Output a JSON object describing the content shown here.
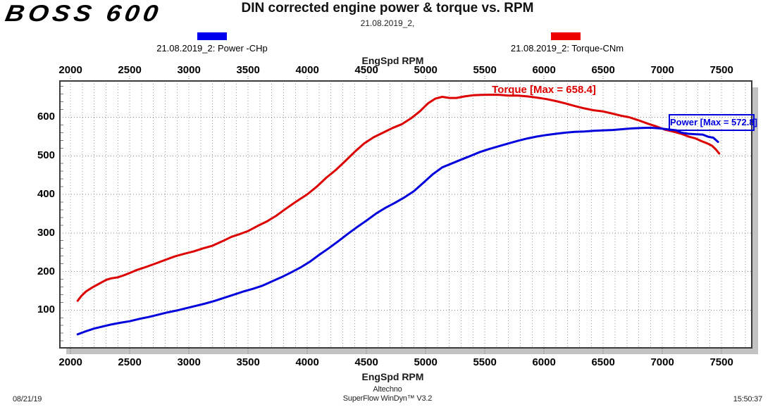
{
  "header": {
    "logo": "BOSS 600",
    "title": "DIN corrected engine power & torque vs. RPM",
    "subtitle": "21.08.2019_2,"
  },
  "legend": {
    "power": {
      "label": "21.08.2019_2: Power -CHp",
      "color": "#0000ee"
    },
    "torque": {
      "label": "21.08.2019_2: Torque-CNm",
      "color": "#ee0000"
    }
  },
  "axes": {
    "x_label_top": "EngSpd RPM",
    "x_label_bottom": "EngSpd RPM"
  },
  "annotations": {
    "torque_max": {
      "text": "Torque [Max = 658.4]",
      "color": "#dd0000"
    },
    "power_max": {
      "text": "Power [Max = 572.8]",
      "color": "#0000dd"
    }
  },
  "footer": {
    "date": "08/21/19",
    "center_line1": "Altechno",
    "center_line2": "SuperFlow WinDyn™ V3.2",
    "time": "15:50:37"
  },
  "chart_data": {
    "type": "line",
    "title": "DIN corrected engine power & torque vs. RPM",
    "subtitle": "21.08.2019_2,",
    "xlabel": "EngSpd RPM",
    "ylabel": "",
    "x_range": [
      1910,
      7755
    ],
    "y_range": [
      2,
      694
    ],
    "x_major_ticks": [
      2000,
      2500,
      3000,
      3500,
      4000,
      4500,
      5000,
      5500,
      6000,
      6500,
      7000,
      7500
    ],
    "y_major_ticks": [
      100,
      200,
      300,
      400,
      500,
      600
    ],
    "x_grid_step": 100,
    "y_minor_step": 20,
    "grid": "dotted",
    "legend_position": "top",
    "series": [
      {
        "name": "21.08.2019_2: Torque-CNm",
        "unit": "CNm",
        "color": "#dd0000",
        "max": 658.4,
        "points": [
          [
            2060,
            124
          ],
          [
            2090,
            136
          ],
          [
            2130,
            148
          ],
          [
            2180,
            158
          ],
          [
            2240,
            168
          ],
          [
            2300,
            178
          ],
          [
            2340,
            182
          ],
          [
            2400,
            185
          ],
          [
            2450,
            190
          ],
          [
            2500,
            196
          ],
          [
            2560,
            204
          ],
          [
            2640,
            212
          ],
          [
            2720,
            221
          ],
          [
            2800,
            230
          ],
          [
            2880,
            239
          ],
          [
            2960,
            246
          ],
          [
            3040,
            252
          ],
          [
            3120,
            260
          ],
          [
            3200,
            267
          ],
          [
            3280,
            278
          ],
          [
            3360,
            290
          ],
          [
            3430,
            297
          ],
          [
            3500,
            305
          ],
          [
            3580,
            318
          ],
          [
            3660,
            330
          ],
          [
            3740,
            345
          ],
          [
            3820,
            363
          ],
          [
            3900,
            380
          ],
          [
            4000,
            400
          ],
          [
            4080,
            420
          ],
          [
            4160,
            443
          ],
          [
            4240,
            463
          ],
          [
            4320,
            486
          ],
          [
            4400,
            510
          ],
          [
            4480,
            532
          ],
          [
            4560,
            548
          ],
          [
            4640,
            560
          ],
          [
            4720,
            572
          ],
          [
            4800,
            582
          ],
          [
            4880,
            598
          ],
          [
            4950,
            615
          ],
          [
            5020,
            636
          ],
          [
            5080,
            648
          ],
          [
            5140,
            653
          ],
          [
            5200,
            650
          ],
          [
            5260,
            650
          ],
          [
            5330,
            654
          ],
          [
            5400,
            657
          ],
          [
            5470,
            658
          ],
          [
            5550,
            658.4
          ],
          [
            5630,
            658
          ],
          [
            5700,
            656
          ],
          [
            5780,
            656
          ],
          [
            5860,
            654
          ],
          [
            5940,
            651
          ],
          [
            6020,
            647
          ],
          [
            6100,
            642
          ],
          [
            6180,
            636
          ],
          [
            6260,
            629
          ],
          [
            6340,
            623
          ],
          [
            6420,
            618
          ],
          [
            6500,
            615
          ],
          [
            6570,
            610
          ],
          [
            6650,
            604
          ],
          [
            6720,
            600
          ],
          [
            6800,
            592
          ],
          [
            6880,
            583
          ],
          [
            6950,
            576
          ],
          [
            7020,
            568
          ],
          [
            7100,
            562
          ],
          [
            7160,
            557
          ],
          [
            7220,
            550
          ],
          [
            7280,
            545
          ],
          [
            7330,
            538
          ],
          [
            7380,
            532
          ],
          [
            7420,
            526
          ],
          [
            7450,
            517
          ],
          [
            7480,
            506
          ]
        ]
      },
      {
        "name": "21.08.2019_2: Power -CHp",
        "unit": "CHp",
        "color": "#0000dd",
        "max": 572.8,
        "points": [
          [
            2060,
            37
          ],
          [
            2130,
            45
          ],
          [
            2200,
            52
          ],
          [
            2280,
            58
          ],
          [
            2350,
            63
          ],
          [
            2420,
            67
          ],
          [
            2500,
            71
          ],
          [
            2580,
            77
          ],
          [
            2660,
            82
          ],
          [
            2740,
            88
          ],
          [
            2820,
            94
          ],
          [
            2900,
            99
          ],
          [
            2980,
            105
          ],
          [
            3060,
            111
          ],
          [
            3140,
            117
          ],
          [
            3220,
            124
          ],
          [
            3300,
            132
          ],
          [
            3380,
            140
          ],
          [
            3460,
            148
          ],
          [
            3540,
            155
          ],
          [
            3620,
            163
          ],
          [
            3700,
            174
          ],
          [
            3780,
            185
          ],
          [
            3860,
            197
          ],
          [
            3940,
            210
          ],
          [
            4020,
            225
          ],
          [
            4100,
            243
          ],
          [
            4180,
            260
          ],
          [
            4260,
            278
          ],
          [
            4340,
            297
          ],
          [
            4420,
            315
          ],
          [
            4500,
            332
          ],
          [
            4580,
            350
          ],
          [
            4660,
            365
          ],
          [
            4740,
            378
          ],
          [
            4820,
            392
          ],
          [
            4900,
            408
          ],
          [
            4980,
            430
          ],
          [
            5060,
            452
          ],
          [
            5140,
            470
          ],
          [
            5220,
            480
          ],
          [
            5300,
            490
          ],
          [
            5380,
            500
          ],
          [
            5460,
            510
          ],
          [
            5540,
            518
          ],
          [
            5620,
            525
          ],
          [
            5700,
            532
          ],
          [
            5780,
            539
          ],
          [
            5860,
            545
          ],
          [
            5940,
            550
          ],
          [
            6020,
            554
          ],
          [
            6100,
            557
          ],
          [
            6180,
            560
          ],
          [
            6260,
            562
          ],
          [
            6340,
            563
          ],
          [
            6420,
            565
          ],
          [
            6500,
            566
          ],
          [
            6580,
            567
          ],
          [
            6660,
            569
          ],
          [
            6740,
            571
          ],
          [
            6820,
            572
          ],
          [
            6900,
            572.8
          ],
          [
            6980,
            571
          ],
          [
            7060,
            568
          ],
          [
            7120,
            566
          ],
          [
            7160,
            560
          ],
          [
            7220,
            557
          ],
          [
            7280,
            556
          ],
          [
            7340,
            555
          ],
          [
            7390,
            549
          ],
          [
            7430,
            547
          ],
          [
            7470,
            536
          ]
        ]
      }
    ]
  }
}
